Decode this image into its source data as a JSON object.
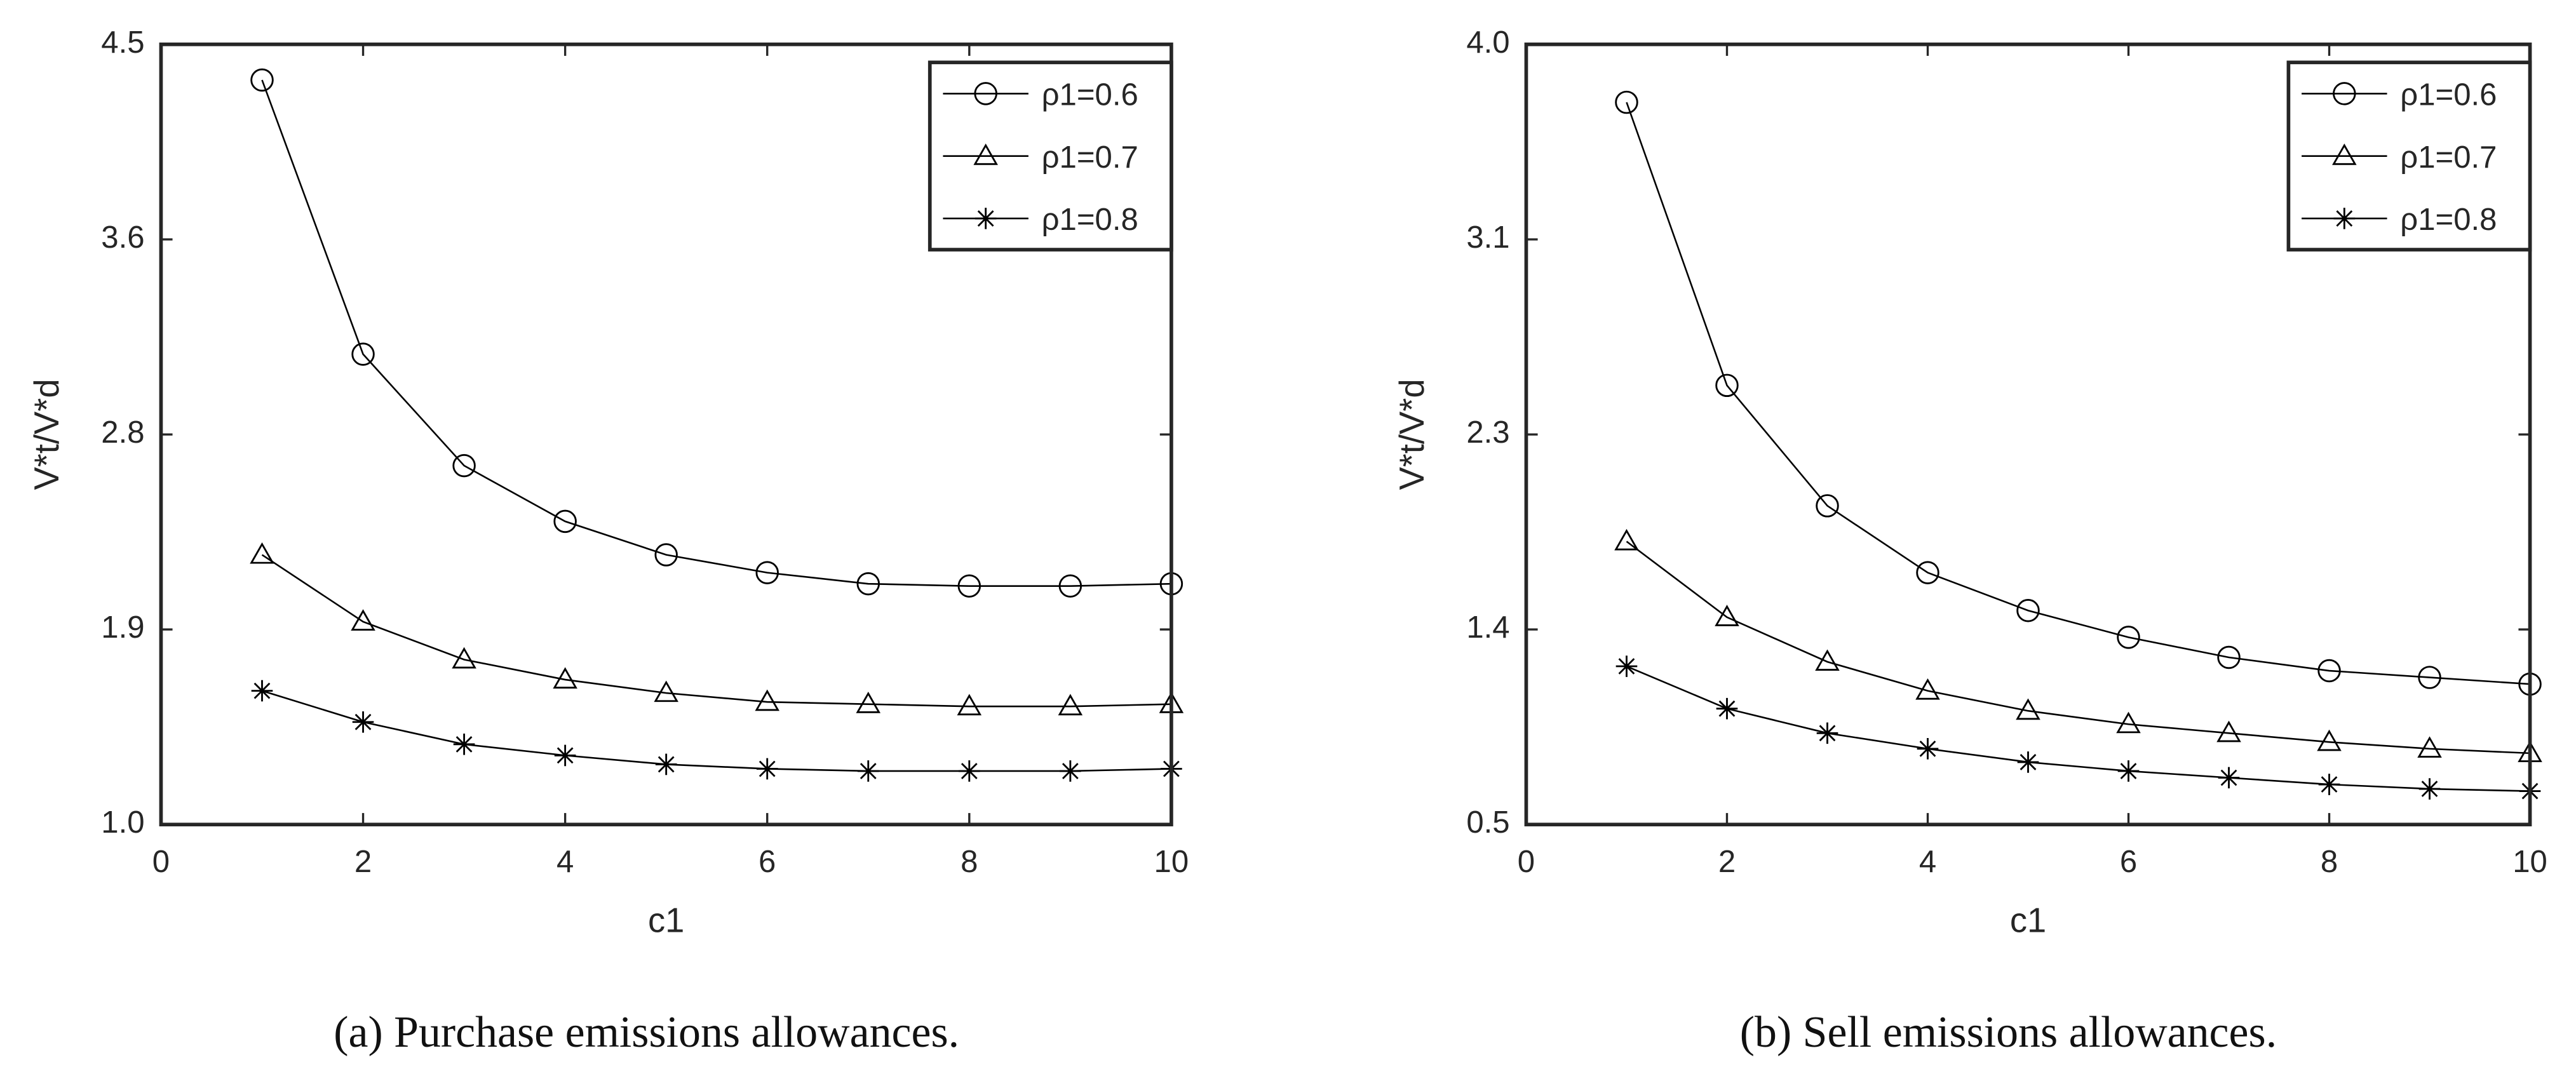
{
  "chart_data": [
    {
      "type": "line",
      "xlabel": "c1",
      "ylabel": "V*t/V*d",
      "caption": "(a) Purchase emissions allowances.",
      "x": [
        1,
        2,
        3,
        4,
        5,
        6,
        7,
        8,
        9,
        10
      ],
      "xlim": [
        0,
        10
      ],
      "xticks": [
        0,
        2,
        4,
        6,
        8,
        10
      ],
      "ylim": [
        1,
        4.5
      ],
      "yticks": [
        {
          "value": 1,
          "label": "1.0"
        },
        {
          "value": 1.875,
          "label": "1.9"
        },
        {
          "value": 2.75,
          "label": "2.8"
        },
        {
          "value": 3.625,
          "label": "3.6"
        },
        4.5
      ],
      "legend": "upper right",
      "series": [
        {
          "name": "ρ1=0.6",
          "color": "#000000",
          "marker": "circle",
          "values": [
            4.34,
            3.11,
            2.61,
            2.36,
            2.21,
            2.13,
            2.08,
            2.07,
            2.07,
            2.08
          ]
        },
        {
          "name": "ρ1=0.7",
          "color": "#000000",
          "marker": "triangle",
          "values": [
            2.21,
            1.91,
            1.74,
            1.65,
            1.59,
            1.55,
            1.54,
            1.53,
            1.53,
            1.54
          ]
        },
        {
          "name": "ρ1=0.8",
          "color": "#000000",
          "marker": "asterisk",
          "values": [
            1.6,
            1.46,
            1.36,
            1.31,
            1.27,
            1.25,
            1.24,
            1.24,
            1.24,
            1.25
          ]
        }
      ]
    },
    {
      "type": "line",
      "xlabel": "c1",
      "ylabel": "V*t/V*d",
      "caption": "(b) Sell emissions allowances.",
      "x": [
        1,
        2,
        3,
        4,
        5,
        6,
        7,
        8,
        9,
        10
      ],
      "xlim": [
        0,
        10
      ],
      "xticks": [
        0,
        2,
        4,
        6,
        8,
        10
      ],
      "ylim": [
        0.5,
        4
      ],
      "yticks": [
        0.5,
        {
          "value": 1.375,
          "label": "1.4"
        },
        {
          "value": 2.25,
          "label": "2.3"
        },
        {
          "value": 3.125,
          "label": "3.1"
        },
        {
          "value": 4,
          "label": "4.0"
        }
      ],
      "legend": "upper right",
      "series": [
        {
          "name": "ρ1=0.6",
          "color": "#000000",
          "marker": "circle",
          "values": [
            3.74,
            2.47,
            1.93,
            1.63,
            1.46,
            1.34,
            1.25,
            1.19,
            1.16,
            1.13
          ]
        },
        {
          "name": "ρ1=0.7",
          "color": "#000000",
          "marker": "triangle",
          "values": [
            1.77,
            1.43,
            1.23,
            1.1,
            1.01,
            0.95,
            0.91,
            0.87,
            0.84,
            0.82
          ]
        },
        {
          "name": "ρ1=0.8",
          "color": "#000000",
          "marker": "asterisk",
          "values": [
            1.21,
            1.02,
            0.91,
            0.84,
            0.78,
            0.74,
            0.71,
            0.68,
            0.66,
            0.65
          ]
        }
      ]
    }
  ]
}
